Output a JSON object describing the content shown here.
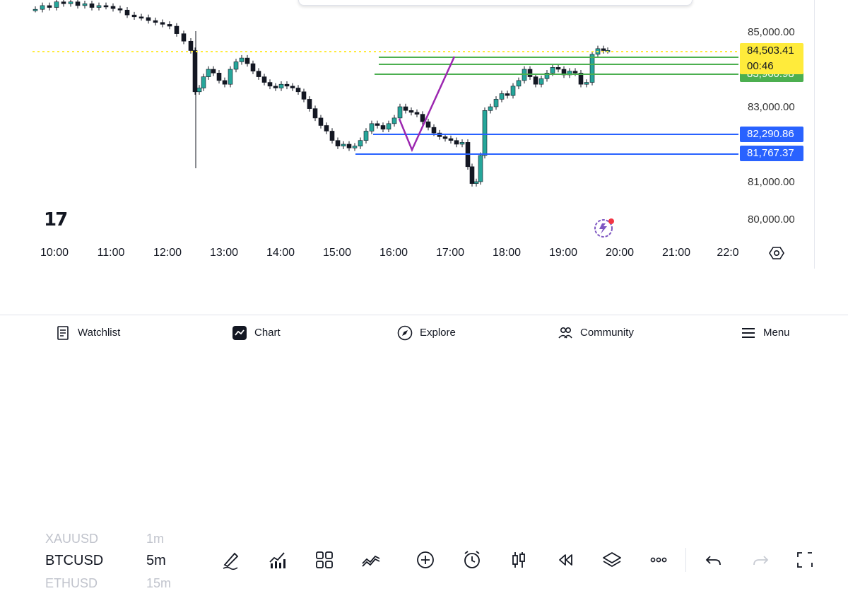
{
  "chart": {
    "price_labels": [
      "85,000.00",
      "83,000.00",
      "81,000.00",
      "80,000.00"
    ],
    "time_labels": [
      "10:00",
      "11:00",
      "12:00",
      "13:00",
      "14:00",
      "15:00",
      "16:00",
      "17:00",
      "18:00",
      "19:00",
      "20:00",
      "21:00",
      "22:0"
    ],
    "badges": {
      "last_price": "84,503.41",
      "countdown": "00:46",
      "green_level": "83,960.98",
      "blue_upper": "82,290.86",
      "blue_lower": "81,767.37"
    },
    "colors": {
      "up": "#26a69a",
      "down": "#131722",
      "blue_line": "#2962ff",
      "green_line": "#4caf50",
      "pattern_line": "#9c27b0",
      "last_price_line": "#ffeb3b"
    }
  },
  "toolbar": {
    "symbol": "BTCUSD",
    "interval": "5m",
    "prev_symbol": "XAUUSD",
    "prev_interval": "1m",
    "next_symbol": "ETHUSD",
    "next_interval": "15m",
    "tools": [
      "brush-icon",
      "indicators-icon",
      "templates-icon",
      "compare-icon",
      "add-icon",
      "alert-icon",
      "candle-type-icon",
      "replay-icon",
      "layers-icon",
      "more-icon",
      "undo-icon",
      "redo-icon",
      "fullscreen-icon"
    ]
  },
  "nav": {
    "watchlist": "Watchlist",
    "chart": "Chart",
    "explore": "Explore",
    "community": "Community",
    "menu": "Menu"
  }
}
